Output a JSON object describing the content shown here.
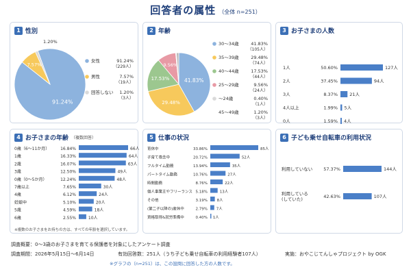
{
  "header": {
    "title": "回答者の属性",
    "subtitle": "（全体 n=251）"
  },
  "p1": {
    "num": "1",
    "title": "性別"
  },
  "p2": {
    "num": "2",
    "title": "年齢"
  },
  "p3": {
    "num": "3",
    "title": "お子さまの人数"
  },
  "p4": {
    "num": "4",
    "title": "お子さまの年齢",
    "sub": "（複数回答）"
  },
  "p5": {
    "num": "5",
    "title": "仕事の状況"
  },
  "p6": {
    "num": "6",
    "title": "子ども乗せ自転車の利用状況"
  },
  "p4_note": "※複数のお子さまをお持ちの方は、すべての年齢を選択しています。",
  "footer": {
    "line1": "調査概要：0〜3歳のお子さまを育てる保護者を対象にしたアンケート調査",
    "line2": "調査期間：2026年5月15日〜6月14日",
    "line2b": "有効回答数：251人（うち子ども乗せ自転車の利用経験者107人）",
    "line2c": "実施：おやこじてんしゃプロジェクト by OGK",
    "note": "※グラフの（n=251）は、この設問に回答した方の人数です。"
  },
  "colors": {
    "primary": "#3b6fb6",
    "bar": "#4a7fc8",
    "title": "#1f3f7a",
    "pie_blue": "#8db3de",
    "pie_yellow": "#f7c95c",
    "pie_green": "#9cc78f",
    "pie_pink": "#e89aa5",
    "pie_grey": "#b8b8b8",
    "pie_lightgrey": "#dadada"
  },
  "chart_data": [
    {
      "type": "pie",
      "title": "性別",
      "series": [
        {
          "name": "女性",
          "value": 91.24,
          "count": "（229人）",
          "label": "91.24%"
        },
        {
          "name": "男性",
          "value": 7.57,
          "count": "（19人）",
          "label": "7.57%"
        },
        {
          "name": "回答しない",
          "value": 1.2,
          "count": "（3人）",
          "label": "1.20%"
        }
      ]
    },
    {
      "type": "pie",
      "title": "年齢",
      "series": [
        {
          "name": "30〜34歳",
          "value": 41.83,
          "count": "（105人）",
          "label": "41.83%"
        },
        {
          "name": "35〜39歳",
          "value": 29.48,
          "count": "（74人）",
          "label": "29.48%"
        },
        {
          "name": "40〜44歳",
          "value": 17.53,
          "count": "（44人）",
          "label": "17.53%"
        },
        {
          "name": "25〜29歳",
          "value": 9.56,
          "count": "（24人）",
          "label": "9.56%"
        },
        {
          "name": "〜24歳",
          "value": 0.4,
          "count": "（1人）",
          "label": "0.40%"
        },
        {
          "name": "45〜49歳",
          "value": 1.2,
          "count": "（3人）",
          "label": "1.20%"
        }
      ]
    },
    {
      "type": "bar",
      "title": "お子さまの人数",
      "categories": [
        "1人",
        "2人",
        "3人",
        "4人以上",
        "0人"
      ],
      "percents": [
        "50.60%",
        "37.45%",
        "8.37%",
        "1.99%",
        "1.59%"
      ],
      "values": [
        127,
        94,
        21,
        5,
        4
      ],
      "counts": [
        "127人",
        "94人",
        "21人",
        "5人",
        "4人"
      ]
    },
    {
      "type": "bar",
      "title": "お子さまの年齢",
      "categories": [
        "0歳（6〜11か月）",
        "1歳",
        "2歳",
        "3歳",
        "0歳（0〜5か月）",
        "7歳以上",
        "4歳",
        "妊娠中",
        "5歳",
        "6歳"
      ],
      "percents": [
        "16.84%",
        "16.33%",
        "16.07%",
        "12.50%",
        "12.24%",
        "7.65%",
        "6.12%",
        "5.10%",
        "4.59%",
        "2.55%"
      ],
      "values": [
        66,
        64,
        63,
        49,
        48,
        30,
        24,
        20,
        18,
        10
      ],
      "counts": [
        "66人",
        "64人",
        "63人",
        "49人",
        "48人",
        "30人",
        "24人",
        "20人",
        "18人",
        "10人"
      ]
    },
    {
      "type": "bar",
      "title": "仕事の状況",
      "categories": [
        "育休中",
        "子育て専念中",
        "フルタイム勤務",
        "パートタイム勤務",
        "時間勤務",
        "個人事業主やフリーランス",
        "その他",
        "(第二子以降の)産休中",
        "資格取得&就労準備中"
      ],
      "percents": [
        "33.86%",
        "20.72%",
        "13.94%",
        "10.76%",
        "8.76%",
        "5.18%",
        "3.19%",
        "2.79%",
        "0.40%"
      ],
      "values": [
        85,
        52,
        35,
        27,
        22,
        13,
        8,
        7,
        1
      ],
      "counts": [
        "85人",
        "52人",
        "35人",
        "27人",
        "22人",
        "13人",
        "8人",
        "7人",
        "1人"
      ]
    },
    {
      "type": "bar",
      "title": "子ども乗せ自転車の利用状況",
      "categories": [
        "利用していない",
        "利用している\n(していた)"
      ],
      "percents": [
        "57.37%",
        "42.63%"
      ],
      "values": [
        144,
        107
      ],
      "counts": [
        "144人",
        "107人"
      ]
    }
  ]
}
